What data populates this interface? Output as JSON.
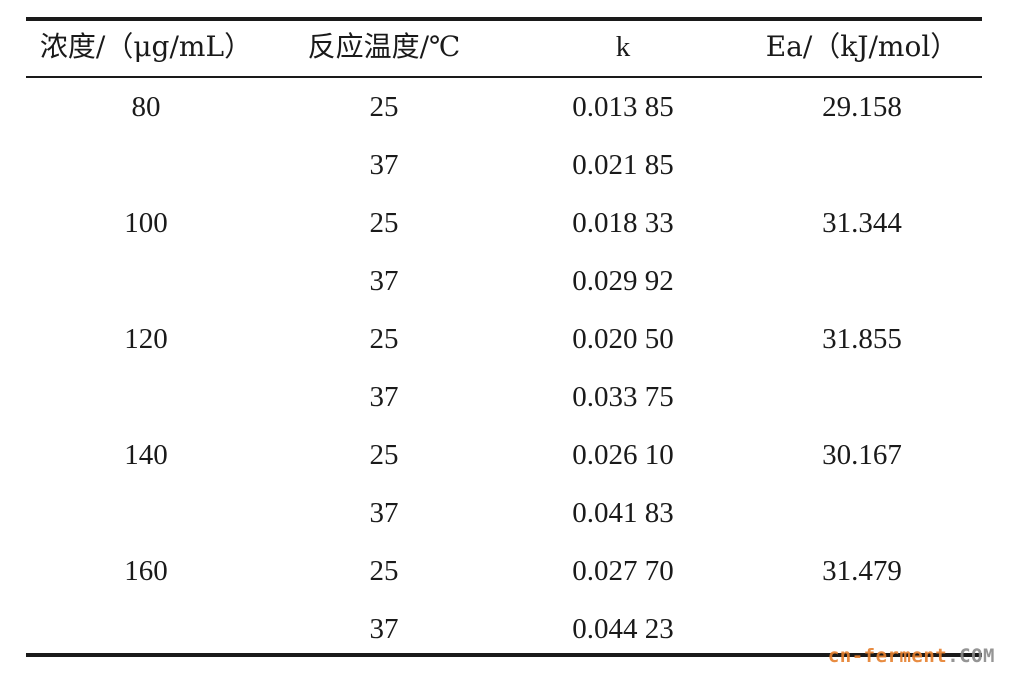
{
  "table": {
    "headers": [
      "浓度/（μg/mL）",
      "反应温度/℃",
      "k",
      "Ea/（kJ/mol）"
    ],
    "rows": [
      [
        "80",
        "25",
        "0.013 85",
        "29.158"
      ],
      [
        "",
        "37",
        "0.021 85",
        ""
      ],
      [
        "100",
        "25",
        "0.018 33",
        "31.344"
      ],
      [
        "",
        "37",
        "0.029 92",
        ""
      ],
      [
        "120",
        "25",
        "0.020 50",
        "31.855"
      ],
      [
        "",
        "37",
        "0.033 75",
        ""
      ],
      [
        "140",
        "25",
        "0.026 10",
        "30.167"
      ],
      [
        "",
        "37",
        "0.041 83",
        ""
      ],
      [
        "160",
        "25",
        "0.027 70",
        "31.479"
      ],
      [
        "",
        "37",
        "0.044 23",
        ""
      ]
    ]
  },
  "watermark": {
    "main": "cn-ferment",
    "suffix": ".COM"
  }
}
